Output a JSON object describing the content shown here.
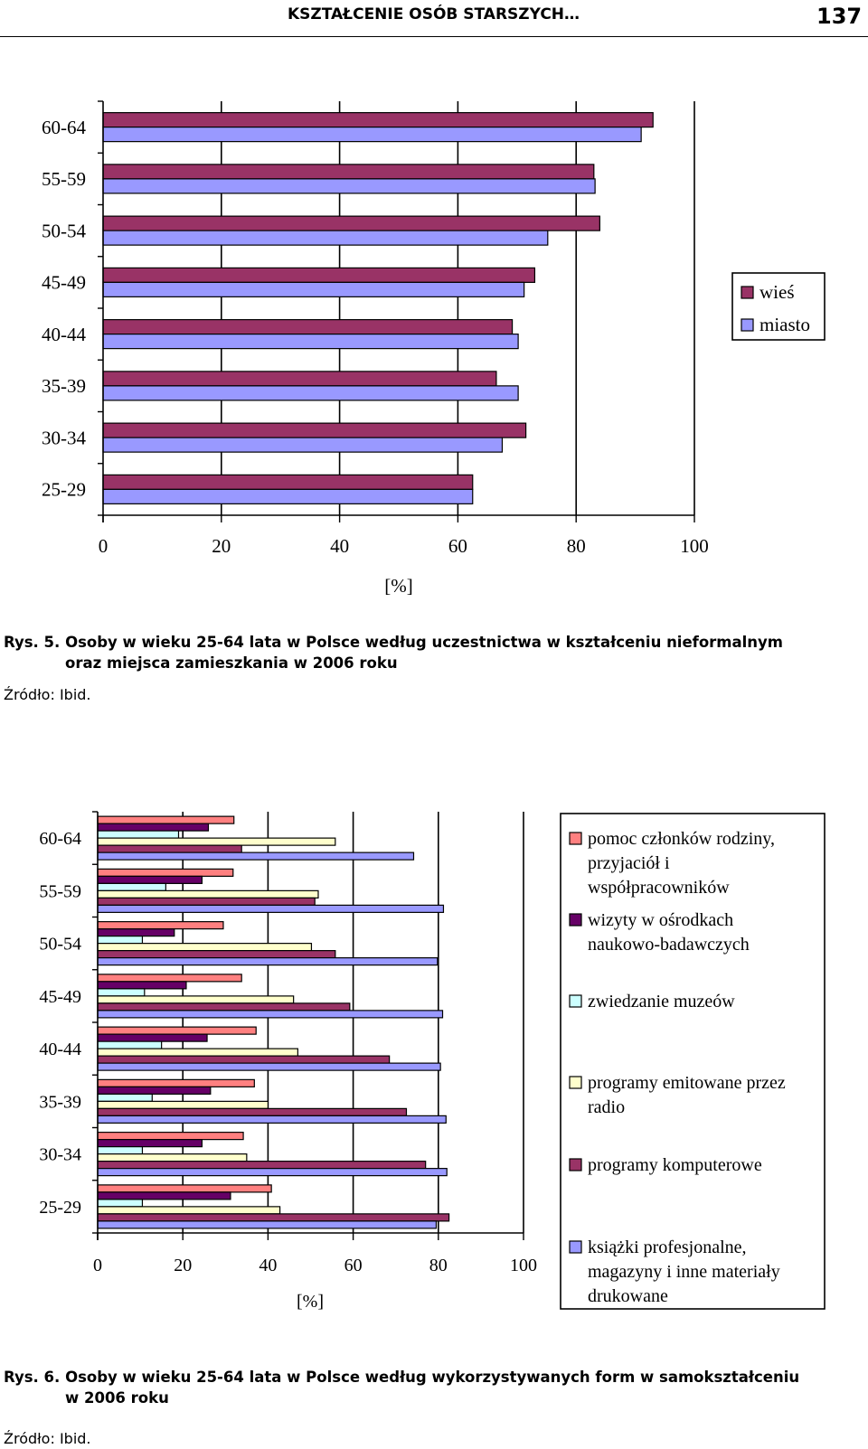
{
  "header": {
    "title": "KSZTAŁCENIE OSÓB STARSZYCH…",
    "page_number": "137"
  },
  "figure5": {
    "caption_num": "Rys. 5.",
    "caption_line1": "Osoby w wieku 25-64 lata w Polsce według uczestnictwa w kształceniu nieformalnym",
    "caption_line2": "oraz miejsca zamieszkania w 2006 roku",
    "source": "Źródło: Ibid."
  },
  "figure6": {
    "caption_num": "Rys. 6.",
    "caption_line1": "Osoby w wieku 25-64 lata w Polsce według wykorzystywanych form w samokształceniu",
    "caption_line2": "w 2006 roku",
    "source": "Źródło: Ibid."
  },
  "chart_data": [
    {
      "type": "bar",
      "orientation": "horizontal",
      "categories": [
        "25-29",
        "30-34",
        "35-39",
        "40-44",
        "45-49",
        "50-54",
        "55-59",
        "60-64"
      ],
      "series": [
        {
          "name": "wieś",
          "color": "#993366",
          "values": [
            62.5,
            71.5,
            66.5,
            69.2,
            73,
            84,
            83,
            93
          ]
        },
        {
          "name": "miasto",
          "color": "#9999FF",
          "values": [
            62.5,
            67.5,
            70.2,
            70.2,
            71.2,
            75.2,
            83.2,
            91
          ]
        }
      ],
      "xlabel": "[%]",
      "xlim": [
        0,
        100
      ],
      "xticks": [
        "0",
        "20",
        "40",
        "60",
        "80",
        "100"
      ],
      "grid": "vertical",
      "legend": "right"
    },
    {
      "type": "bar",
      "orientation": "horizontal",
      "categories": [
        "25-29",
        "30-34",
        "35-39",
        "40-44",
        "45-49",
        "50-54",
        "55-59",
        "60-64"
      ],
      "series": [
        {
          "name": "pomoc członków rodziny, przyjaciół i współpracowników",
          "legend_lines": [
            "pomoc członków rodziny,",
            "przyjaciół i",
            "współpracowników"
          ],
          "color": "#FF8080",
          "values": [
            40.8,
            34.2,
            36.8,
            37.2,
            33.8,
            29.5,
            31.8,
            32
          ]
        },
        {
          "name": "wizyty w ośrodkach naukowo-badawczych",
          "legend_lines": [
            "wizyty w ośrodkach",
            "naukowo-badawczych"
          ],
          "color": "#660066",
          "values": [
            31.2,
            24.5,
            26.5,
            25.7,
            20.8,
            18,
            24.5,
            26
          ]
        },
        {
          "name": "zwiedzanie muzeów",
          "legend_lines": [
            "zwiedzanie muzeów"
          ],
          "color": "#CCFFFF",
          "values": [
            10.5,
            10.5,
            12.8,
            15,
            11,
            10.5,
            16,
            19
          ]
        },
        {
          "name": "programy emitowane przez radio",
          "legend_lines": [
            "programy emitowane przez",
            "radio"
          ],
          "color": "#FFFFCC",
          "values": [
            42.8,
            35,
            40,
            47,
            46,
            50.2,
            51.8,
            55.8
          ]
        },
        {
          "name": "programy komputerowe",
          "legend_lines": [
            "programy komputerowe"
          ],
          "color": "#993366",
          "values": [
            82.5,
            77,
            72.5,
            68.5,
            59.2,
            55.8,
            51,
            33.8
          ]
        },
        {
          "name": "książki profesjonalne, magazyny i inne materiały drukowane",
          "legend_lines": [
            "książki profesjonalne,",
            "magazyny i inne materiały",
            "drukowane"
          ],
          "color": "#9999FF",
          "values": [
            79.5,
            82,
            81.8,
            80.5,
            81,
            79.8,
            81.2,
            74.2
          ]
        }
      ],
      "xlabel": "[%]",
      "xlim": [
        0,
        100
      ],
      "xticks": [
        "0",
        "20",
        "40",
        "60",
        "80",
        "100"
      ],
      "grid": "vertical",
      "legend": "right"
    }
  ]
}
